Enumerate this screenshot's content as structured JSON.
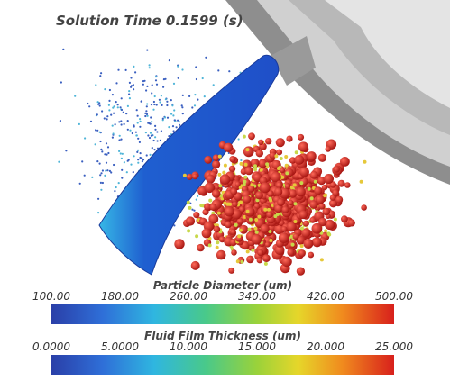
{
  "title": "Solution Time 0.1599 (s)",
  "colorbars": [
    {
      "title": "Particle Diameter (um)",
      "ticks": [
        "100.00",
        "180.00",
        "260.00",
        "340.00",
        "420.00",
        "500.00"
      ]
    },
    {
      "title": "Fluid Film Thickness (um)",
      "ticks": [
        "0.0000",
        "5.0000",
        "10.000",
        "15.000",
        "20.000",
        "25.000"
      ]
    }
  ]
}
